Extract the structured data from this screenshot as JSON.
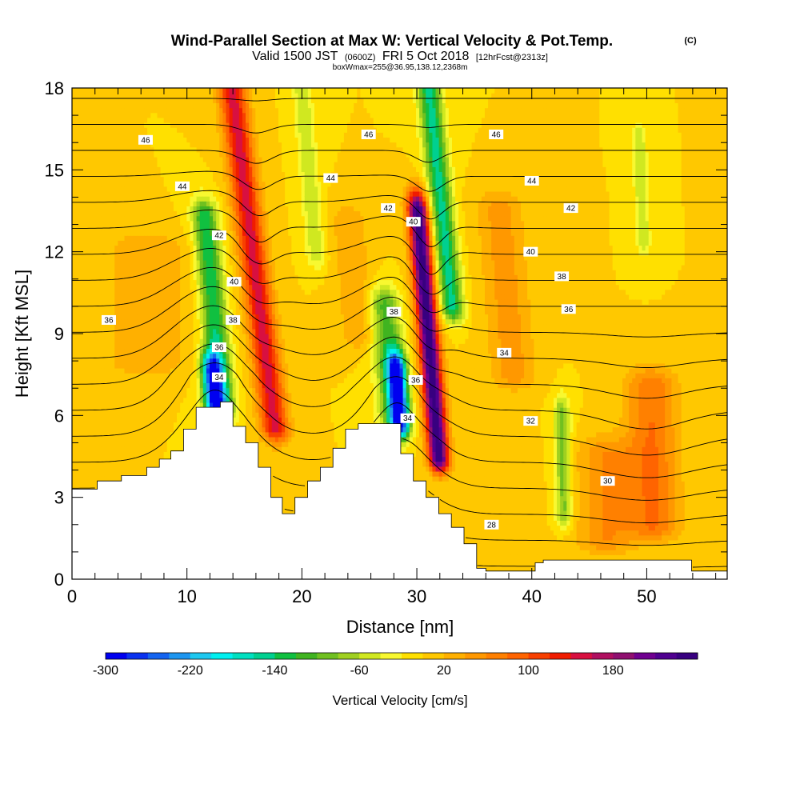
{
  "header": {
    "title": "Wind-Parallel Section at Max W: Vertical Velocity & Pot.Temp.",
    "copyright": "(C)",
    "valid_prefix": "Valid 1500 JST",
    "valid_utc": "(0600Z)",
    "valid_date": "FRI 5 Oct 2018",
    "forecast": "[12hrFcst@2313z]",
    "boxinfo": "boxWmax=255@36.95,138.12,2368m"
  },
  "colors": {
    "terrain": "#ffffff",
    "isentrope": "#000000",
    "background_field": "#ffe000"
  },
  "chart_data": {
    "type": "heatmap",
    "xlabel": "Distance [nm]",
    "ylabel": "Height [Kft MSL]",
    "xlim": [
      0,
      57
    ],
    "ylim": [
      0,
      18
    ],
    "x_ticks": [
      {
        "value": 0,
        "label": "0"
      },
      {
        "value": 10,
        "label": "10"
      },
      {
        "value": 20,
        "label": "20"
      },
      {
        "value": 30,
        "label": "30"
      },
      {
        "value": 40,
        "label": "40"
      },
      {
        "value": 50,
        "label": "50"
      }
    ],
    "y_ticks": [
      {
        "value": 0,
        "label": "0"
      },
      {
        "value": 3,
        "label": "3"
      },
      {
        "value": 6,
        "label": "6"
      },
      {
        "value": 9,
        "label": "9"
      },
      {
        "value": 12,
        "label": "12"
      },
      {
        "value": 15,
        "label": "15"
      },
      {
        "value": 18,
        "label": "18"
      }
    ],
    "colorbar": {
      "label": "Vertical Velocity [cm/s]",
      "min": -300,
      "max": 260,
      "step": 20,
      "tick_labels": [
        {
          "value": -300,
          "label": "-300"
        },
        {
          "value": -220,
          "label": "-220"
        },
        {
          "value": -140,
          "label": "-140"
        },
        {
          "value": -60,
          "label": "-60"
        },
        {
          "value": 20,
          "label": "20"
        },
        {
          "value": 100,
          "label": "100"
        },
        {
          "value": 180,
          "label": "180"
        }
      ],
      "colors": [
        "#0000f0",
        "#0a32f0",
        "#1464f0",
        "#1e96f0",
        "#1ec8f0",
        "#00f0f0",
        "#00e0c0",
        "#00d090",
        "#10c040",
        "#40b420",
        "#70c020",
        "#a0d020",
        "#d0e820",
        "#f8f830",
        "#ffe000",
        "#ffc800",
        "#ffb000",
        "#ff9800",
        "#ff8000",
        "#ff6400",
        "#f84000",
        "#f01c00",
        "#d81040",
        "#b01060",
        "#901070",
        "#700090",
        "#500090",
        "#380080"
      ]
    },
    "terrain_profile": [
      [
        0,
        3.3
      ],
      [
        2.2,
        3.3
      ],
      [
        2.2,
        3.6
      ],
      [
        4.3,
        3.6
      ],
      [
        4.3,
        3.8
      ],
      [
        6.5,
        3.8
      ],
      [
        6.5,
        4.1
      ],
      [
        7.6,
        4.1
      ],
      [
        7.6,
        4.4
      ],
      [
        8.6,
        4.4
      ],
      [
        8.6,
        4.7
      ],
      [
        9.7,
        4.7
      ],
      [
        9.7,
        5.5
      ],
      [
        10.8,
        5.5
      ],
      [
        10.8,
        6.3
      ],
      [
        12.9,
        6.3
      ],
      [
        12.9,
        6.5
      ],
      [
        14.0,
        6.5
      ],
      [
        14.0,
        5.6
      ],
      [
        15.1,
        5.6
      ],
      [
        15.1,
        5.0
      ],
      [
        16.2,
        5.0
      ],
      [
        16.2,
        4.1
      ],
      [
        17.3,
        4.1
      ],
      [
        17.3,
        3.0
      ],
      [
        18.3,
        3.0
      ],
      [
        18.3,
        2.4
      ],
      [
        19.4,
        2.4
      ],
      [
        19.4,
        3.0
      ],
      [
        20.5,
        3.0
      ],
      [
        20.5,
        3.6
      ],
      [
        21.6,
        3.6
      ],
      [
        21.6,
        4.1
      ],
      [
        22.7,
        4.1
      ],
      [
        22.7,
        4.8
      ],
      [
        23.8,
        4.8
      ],
      [
        23.8,
        5.5
      ],
      [
        24.9,
        5.5
      ],
      [
        24.9,
        5.7
      ],
      [
        28.6,
        5.7
      ],
      [
        28.6,
        4.6
      ],
      [
        29.7,
        4.6
      ],
      [
        29.7,
        3.6
      ],
      [
        30.8,
        3.6
      ],
      [
        30.8,
        3.0
      ],
      [
        31.9,
        3.0
      ],
      [
        31.9,
        2.4
      ],
      [
        33.0,
        2.4
      ],
      [
        33.0,
        1.9
      ],
      [
        34.1,
        1.9
      ],
      [
        34.1,
        1.3
      ],
      [
        35.2,
        1.3
      ],
      [
        35.2,
        0.4
      ],
      [
        36.0,
        0.4
      ],
      [
        36.0,
        0.3
      ],
      [
        40.3,
        0.3
      ],
      [
        40.3,
        0.6
      ],
      [
        41.0,
        0.6
      ],
      [
        41.0,
        0.7
      ],
      [
        53.9,
        0.7
      ],
      [
        53.9,
        0.3
      ],
      [
        57,
        0.3
      ]
    ],
    "w_cores": [
      {
        "x": 15.6,
        "y": 12.4,
        "width": 1.2,
        "tilt": -0.3,
        "bottom": 5.6,
        "top": 18.0,
        "peak": 150
      },
      {
        "x": 12.4,
        "y": 9.5,
        "width": 1.1,
        "tilt": -0.22,
        "bottom": 6.4,
        "top": 13.2,
        "peak": -140
      },
      {
        "x": 12.3,
        "y": 6.9,
        "width": 0.9,
        "tilt": -0.2,
        "bottom": 6.3,
        "top": 7.6,
        "peak": -230
      },
      {
        "x": 30.7,
        "y": 10.5,
        "width": 0.9,
        "tilt": -0.2,
        "bottom": 4.5,
        "top": 13.5,
        "peak": 260
      },
      {
        "x": 31.8,
        "y": 15.0,
        "width": 1.0,
        "tilt": -0.25,
        "bottom": 10.0,
        "top": 18.0,
        "peak": -150
      },
      {
        "x": 28.4,
        "y": 6.6,
        "width": 0.8,
        "tilt": -0.15,
        "bottom": 5.7,
        "top": 7.6,
        "peak": -260
      },
      {
        "x": 27.5,
        "y": 8.5,
        "width": 1.3,
        "tilt": -0.2,
        "bottom": 6.0,
        "top": 10.0,
        "peak": -110
      },
      {
        "x": 20.6,
        "y": 15.0,
        "width": 0.8,
        "tilt": -0.2,
        "bottom": 12.0,
        "top": 18.0,
        "peak": -60
      },
      {
        "x": 42.7,
        "y": 4.4,
        "width": 0.7,
        "tilt": -0.05,
        "bottom": 2.5,
        "top": 6.0,
        "peak": -90
      },
      {
        "x": 49.5,
        "y": 14.5,
        "width": 0.6,
        "tilt": -0.1,
        "bottom": 12.5,
        "top": 16.0,
        "peak": -60
      },
      {
        "x": 50.5,
        "y": 4.8,
        "width": 2.2,
        "tilt": -0.05,
        "bottom": 2.0,
        "top": 7.0,
        "peak": 80
      },
      {
        "x": 6.5,
        "y": 9.5,
        "width": 3.5,
        "tilt": 0.0,
        "bottom": 8.0,
        "top": 12.0,
        "peak": 40
      },
      {
        "x": 37.8,
        "y": 10.5,
        "width": 2.0,
        "tilt": -0.2,
        "bottom": 7.5,
        "top": 13.5,
        "peak": 50
      },
      {
        "x": 46.5,
        "y": 3.2,
        "width": 2.5,
        "tilt": 0.0,
        "bottom": 1.5,
        "top": 4.5,
        "peak": 60
      },
      {
        "x": 24.5,
        "y": 11.0,
        "width": 1.5,
        "tilt": -0.2,
        "bottom": 9.0,
        "top": 13.0,
        "peak": 40
      }
    ],
    "isentropes": {
      "theta_min": 24,
      "theta_max": 50,
      "interval": 1,
      "labels": [
        {
          "text": "46",
          "x": 6.4,
          "y": 16.1
        },
        {
          "text": "44",
          "x": 9.6,
          "y": 14.4
        },
        {
          "text": "42",
          "x": 12.8,
          "y": 12.6
        },
        {
          "text": "40",
          "x": 14.1,
          "y": 10.9
        },
        {
          "text": "38",
          "x": 14.0,
          "y": 9.5
        },
        {
          "text": "36",
          "x": 12.8,
          "y": 8.5
        },
        {
          "text": "34",
          "x": 12.8,
          "y": 7.4
        },
        {
          "text": "36",
          "x": 3.2,
          "y": 9.5
        },
        {
          "text": "46",
          "x": 25.8,
          "y": 16.3
        },
        {
          "text": "44",
          "x": 22.5,
          "y": 14.7
        },
        {
          "text": "42",
          "x": 27.5,
          "y": 13.6
        },
        {
          "text": "40",
          "x": 29.7,
          "y": 13.1
        },
        {
          "text": "38",
          "x": 28.0,
          "y": 9.8
        },
        {
          "text": "36",
          "x": 29.9,
          "y": 7.3
        },
        {
          "text": "34",
          "x": 29.2,
          "y": 5.9
        },
        {
          "text": "46",
          "x": 36.9,
          "y": 16.3
        },
        {
          "text": "44",
          "x": 40.0,
          "y": 14.6
        },
        {
          "text": "42",
          "x": 43.4,
          "y": 13.6
        },
        {
          "text": "40",
          "x": 39.9,
          "y": 12.0
        },
        {
          "text": "38",
          "x": 42.6,
          "y": 11.1
        },
        {
          "text": "36",
          "x": 43.2,
          "y": 9.9
        },
        {
          "text": "34",
          "x": 37.6,
          "y": 8.3
        },
        {
          "text": "32",
          "x": 39.9,
          "y": 5.8
        },
        {
          "text": "30",
          "x": 46.6,
          "y": 3.6
        },
        {
          "text": "28",
          "x": 36.5,
          "y": 2.0
        }
      ]
    }
  }
}
